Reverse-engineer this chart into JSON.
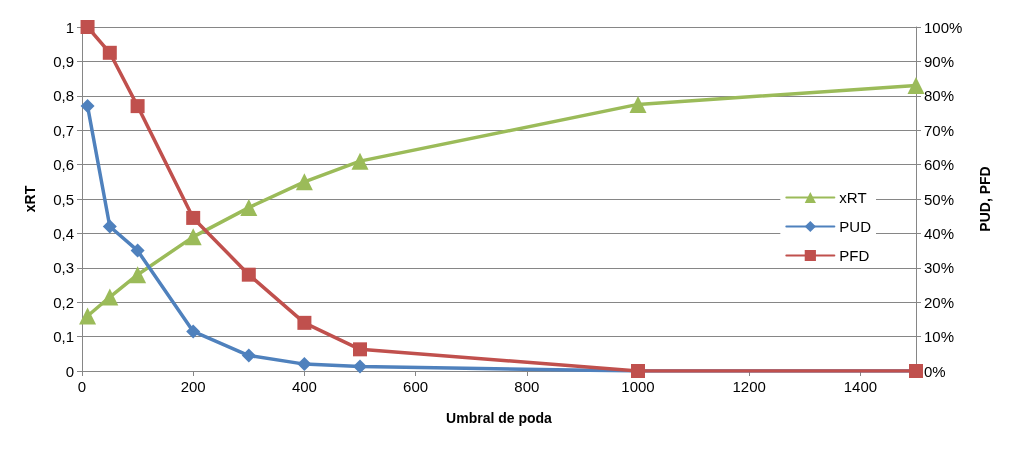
{
  "chart_data": {
    "type": "line",
    "xlabel": "Umbral de poda",
    "ylabel": "xRT",
    "y2label": "PUD, PFD",
    "x": [
      10,
      50,
      100,
      200,
      300,
      400,
      500,
      1000,
      1500
    ],
    "series": [
      {
        "name": "xRT",
        "color": "#9bbb59",
        "marker": "triangle",
        "values": [
          0.16,
          0.215,
          0.28,
          0.39,
          0.475,
          0.55,
          0.61,
          0.775,
          0.83
        ]
      },
      {
        "name": "PUD",
        "color": "#4f81bd",
        "marker": "diamond",
        "axis": "y2",
        "values": [
          77,
          42,
          35,
          11.5,
          4.5,
          2,
          1.3,
          0,
          0
        ]
      },
      {
        "name": "PFD",
        "color": "#c0504d",
        "marker": "square",
        "axis": "y2",
        "values": [
          100,
          92.5,
          77,
          44.5,
          28,
          14,
          6.3,
          0,
          0
        ]
      }
    ],
    "xlim": [
      0,
      1500
    ],
    "xticks": [
      0,
      200,
      400,
      600,
      800,
      1000,
      1200,
      1400,
      {
        "value": 1500,
        "label": null
      }
    ],
    "ylim": [
      0,
      1
    ],
    "yticks": [
      0,
      {
        "value": 0.1,
        "label": "0,1"
      },
      {
        "value": 0.2,
        "label": "0,2"
      },
      {
        "value": 0.3,
        "label": "0,3"
      },
      {
        "value": 0.4,
        "label": "0,4"
      },
      {
        "value": 0.5,
        "label": "0,5"
      },
      {
        "value": 0.6,
        "label": "0,6"
      },
      {
        "value": 0.7,
        "label": "0,7"
      },
      {
        "value": 0.8,
        "label": "0,8"
      },
      {
        "value": 0.9,
        "label": "0,9"
      },
      1
    ],
    "y2lim": [
      0,
      100
    ],
    "y2ticks": [
      {
        "value": 0,
        "label": "0%"
      },
      {
        "value": 10,
        "label": "10%"
      },
      {
        "value": 20,
        "label": "20%"
      },
      {
        "value": 30,
        "label": "30%"
      },
      {
        "value": 40,
        "label": "40%"
      },
      {
        "value": 50,
        "label": "50%"
      },
      {
        "value": 60,
        "label": "60%"
      },
      {
        "value": 70,
        "label": "70%"
      },
      {
        "value": 80,
        "label": "80%"
      },
      {
        "value": 90,
        "label": "90%"
      },
      {
        "value": 100,
        "label": "100%"
      }
    ],
    "grid": "y",
    "legend": "right",
    "line_style": "solid"
  }
}
